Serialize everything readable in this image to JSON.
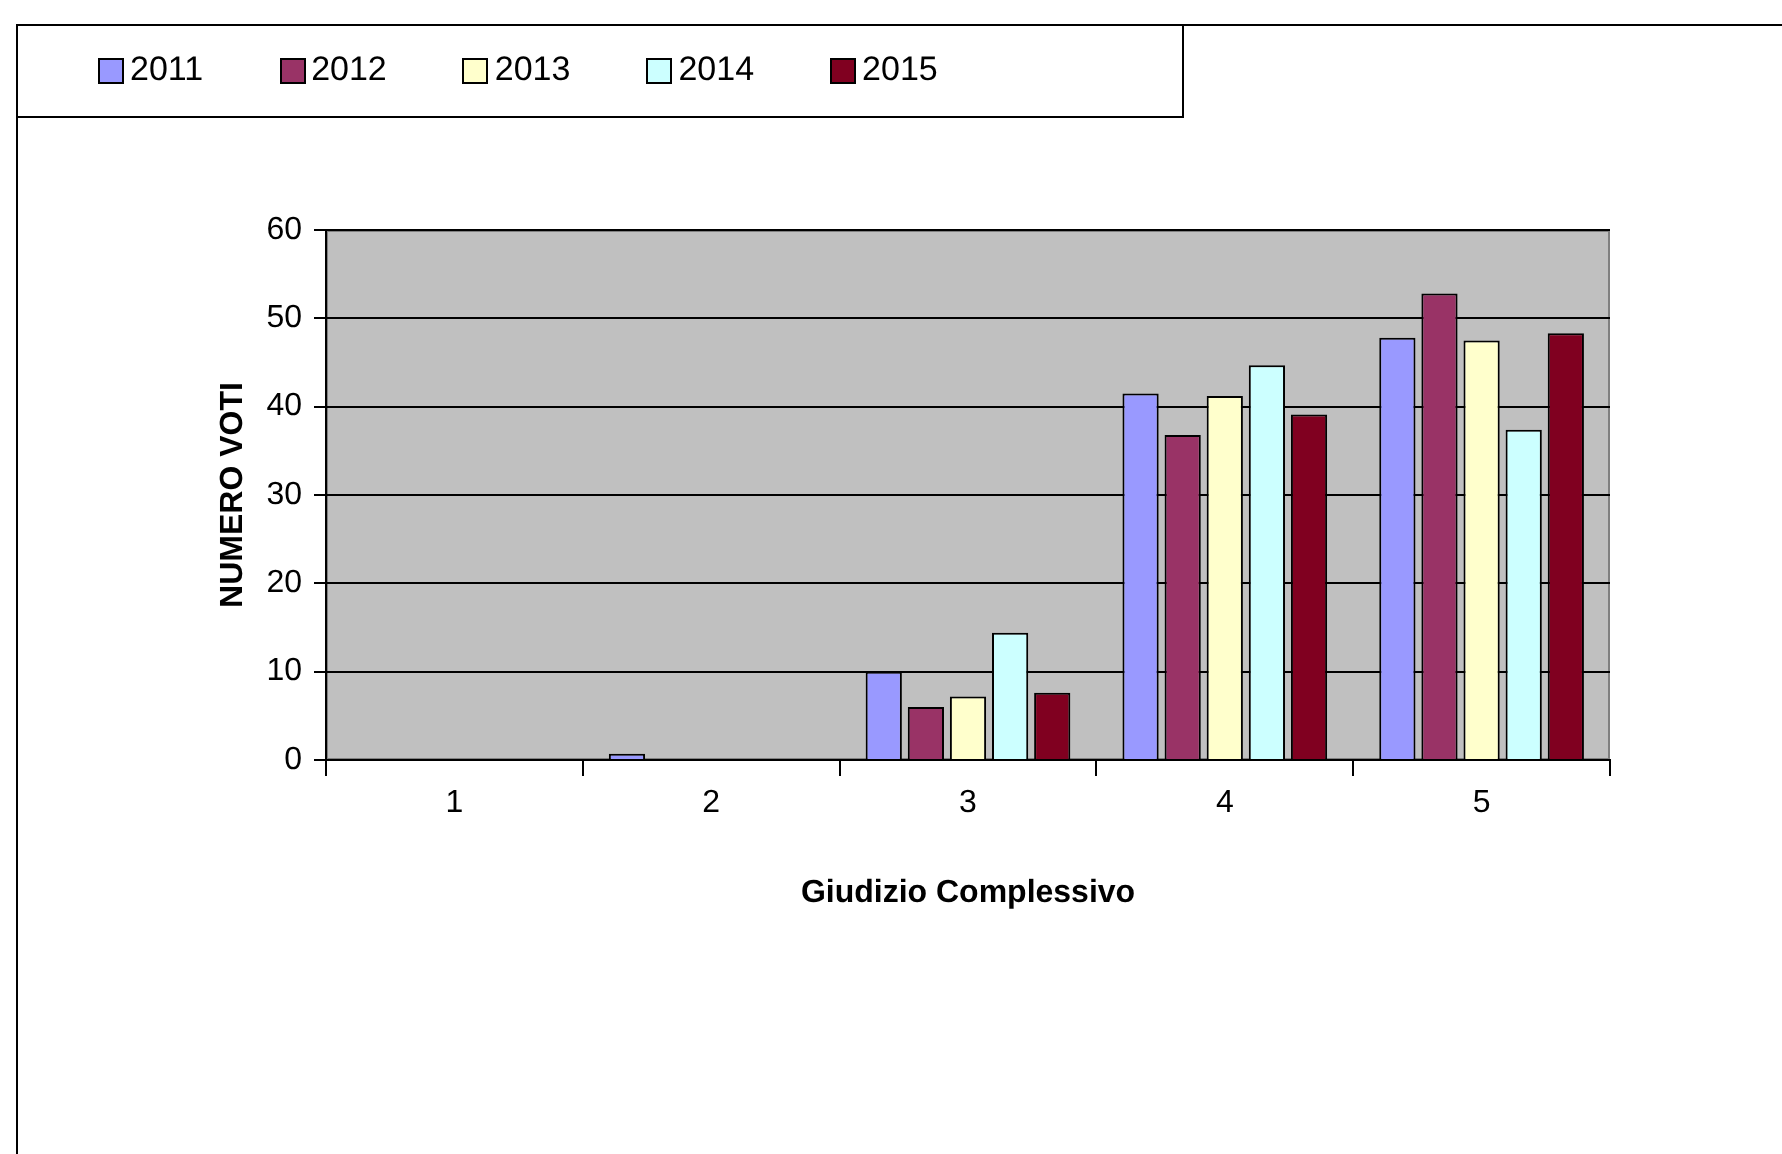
{
  "chart_data": {
    "type": "bar",
    "xlabel": "Giudizio Complessivo",
    "ylabel": "NUMERO VOTI",
    "categories": [
      "1",
      "2",
      "3",
      "4",
      "5"
    ],
    "series": [
      {
        "name": "2011",
        "color": "#9999ff",
        "values": [
          0,
          0.7,
          10,
          41.5,
          47.8
        ]
      },
      {
        "name": "2012",
        "color": "#993366",
        "values": [
          0,
          0,
          6,
          36.8,
          52.8
        ]
      },
      {
        "name": "2013",
        "color": "#ffffcc",
        "values": [
          0,
          0,
          7.2,
          41.2,
          47.5
        ]
      },
      {
        "name": "2014",
        "color": "#ccffff",
        "values": [
          0,
          0,
          14.4,
          44.7,
          37.4
        ]
      },
      {
        "name": "2015",
        "color": "#800020",
        "values": [
          0,
          0,
          7.6,
          39.1,
          48.3
        ]
      }
    ],
    "ylim": [
      0,
      60
    ],
    "yticks": [
      0,
      10,
      20,
      30,
      40,
      50,
      60
    ],
    "grid": "y",
    "legend": "top left"
  }
}
